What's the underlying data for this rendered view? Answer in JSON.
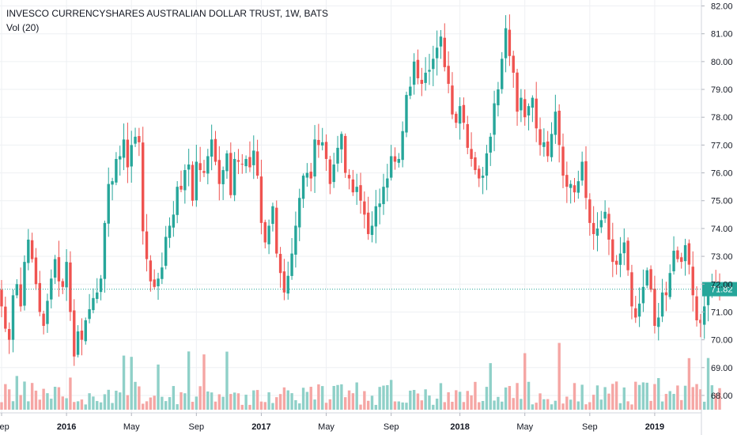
{
  "chart_data": {
    "type": "candlestick",
    "title": "INVESCO CURRENCYSHARES AUSTRALIAN DOLLAR TRUST, 1W, BATS",
    "volume_label": "Vol (20)",
    "last_price_label": "71.82",
    "last_price": 71.82,
    "ylim": [
      67.8,
      82.1
    ],
    "y_ticks": [
      68,
      69,
      70,
      71,
      72,
      73,
      74,
      75,
      76,
      77,
      78,
      79,
      80,
      81,
      82
    ],
    "y_tick_labels": [
      "68.00",
      "69.00",
      "70.00",
      "71.00",
      "72.00",
      "73.00",
      "74.00",
      "75.00",
      "76.00",
      "77.00",
      "78.00",
      "79.00",
      "80.00",
      "81.00",
      "82.00"
    ],
    "x_ticks": [
      {
        "label": "Sep",
        "week": 0,
        "bold": false
      },
      {
        "label": "2016",
        "week": 17,
        "bold": true
      },
      {
        "label": "May",
        "week": 34,
        "bold": false
      },
      {
        "label": "Sep",
        "week": 51,
        "bold": false
      },
      {
        "label": "2017",
        "week": 68,
        "bold": true
      },
      {
        "label": "May",
        "week": 85,
        "bold": false
      },
      {
        "label": "Sep",
        "week": 102,
        "bold": false
      },
      {
        "label": "2018",
        "week": 120,
        "bold": true
      },
      {
        "label": "May",
        "week": 137,
        "bold": false
      },
      {
        "label": "Sep",
        "week": 154,
        "bold": false
      },
      {
        "label": "2019",
        "week": 171,
        "bold": true
      }
    ],
    "colors": {
      "up": "#26a69a",
      "down": "#ef5350",
      "up_vol": "#8fd0c8",
      "down_vol": "#f5a6a4",
      "grid": "#eef0f3",
      "last_line": "#26a69a",
      "label_bg": "#26a69a"
    },
    "close": [
      71.2,
      70.4,
      70.0,
      71.6,
      72.0,
      71.2,
      72.8,
      73.6,
      72.9,
      72.0,
      71.0,
      70.5,
      71.4,
      72.2,
      72.9,
      72.1,
      71.9,
      72.8,
      71.0,
      69.4,
      70.3,
      70.0,
      70.7,
      71.1,
      71.5,
      71.7,
      72.2,
      74.2,
      75.6,
      75.7,
      76.5,
      76.6,
      77.2,
      76.2,
      77.0,
      77.3,
      77.1,
      73.9,
      72.9,
      72.1,
      71.9,
      72.2,
      72.6,
      73.7,
      74.1,
      74.5,
      75.5,
      75.4,
      76.1,
      76.3,
      75.0,
      76.4,
      76.1,
      76.0,
      76.6,
      77.2,
      76.4,
      75.6,
      76.1,
      76.7,
      75.2,
      76.5,
      76.4,
      76.3,
      76.5,
      76.2,
      76.8,
      75.9,
      74.2,
      73.5,
      74.1,
      74.8,
      73.1,
      72.4,
      71.7,
      72.3,
      73.1,
      74.1,
      75.1,
      75.9,
      76.0,
      75.8,
      77.2,
      77.0,
      77.1,
      76.5,
      75.6,
      76.3,
      76.9,
      77.4,
      76.0,
      75.8,
      75.3,
      75.5,
      75.0,
      74.5,
      73.8,
      74.1,
      74.8,
      74.9,
      75.5,
      75.8,
      76.6,
      76.4,
      76.5,
      77.5,
      78.8,
      79.1,
      80.0,
      79.4,
      79.2,
      79.6,
      79.7,
      80.1,
      80.5,
      80.9,
      79.8,
      79.2,
      78.1,
      77.8,
      78.4,
      77.8,
      76.9,
      76.5,
      76.1,
      75.8,
      75.9,
      76.7,
      77.3,
      78.5,
      79.0,
      80.1,
      81.2,
      80.2,
      79.6,
      78.2,
      78.7,
      78.0,
      78.4,
      78.7,
      77.6,
      77.0,
      77.1,
      76.6,
      77.4,
      78.2,
      77.0,
      75.9,
      75.5,
      75.6,
      75.3,
      75.7,
      76.4,
      75.1,
      74.2,
      73.8,
      74.0,
      74.3,
      74.6,
      73.6,
      72.8,
      72.7,
      73.1,
      73.5,
      72.5,
      71.2,
      70.8,
      71.3,
      71.9,
      72.5,
      71.8,
      70.5,
      70.8,
      71.7,
      71.6,
      72.4,
      73.2,
      72.9,
      72.8,
      73.4,
      72.7,
      71.6,
      70.7,
      70.6,
      71.2,
      71.8,
      72.0,
      71.9,
      71.82
    ]
  }
}
